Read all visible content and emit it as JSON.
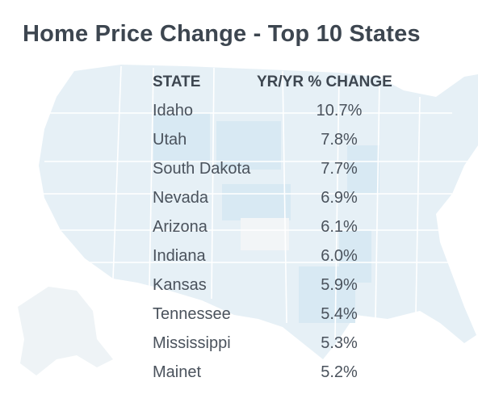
{
  "chart_data": {
    "type": "table",
    "title": "Home Price Change - Top 10 States",
    "columns": [
      "STATE",
      "YR/YR % CHANGE"
    ],
    "rows": [
      {
        "state": "Idaho",
        "change": "10.7%"
      },
      {
        "state": "Utah",
        "change": "7.8%"
      },
      {
        "state": "South Dakota",
        "change": "7.7%"
      },
      {
        "state": "Nevada",
        "change": "6.9%"
      },
      {
        "state": "Arizona",
        "change": "6.1%"
      },
      {
        "state": "Indiana",
        "change": "6.0%"
      },
      {
        "state": "Kansas",
        "change": "5.9%"
      },
      {
        "state": "Tennessee",
        "change": "5.4%"
      },
      {
        "state": "Mississippi",
        "change": "5.3%"
      },
      {
        "state": "Mainet",
        "change": "5.2%"
      }
    ]
  },
  "colors": {
    "title": "#3d4650",
    "text": "#4a525c",
    "map_fill": "#e3eef5",
    "map_highlight": "#d4e8f3",
    "map_border": "#ffffff"
  }
}
